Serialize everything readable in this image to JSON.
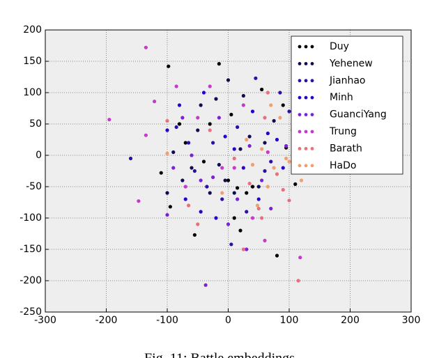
{
  "chart_data": {
    "type": "scatter",
    "xlim": [
      -300,
      300
    ],
    "ylim": [
      -250,
      200
    ],
    "xticks": [
      -300,
      -200,
      -100,
      0,
      100,
      200,
      300
    ],
    "yticks": [
      -250,
      -200,
      -150,
      -100,
      -50,
      0,
      50,
      100,
      150,
      200
    ],
    "grid": true,
    "legend": "upper right",
    "series": [
      {
        "name": "Duy",
        "color": "#000000",
        "x": [
          -98,
          -15,
          -55,
          -95,
          15,
          20,
          80,
          110,
          95,
          -110,
          -70,
          -30,
          0,
          10,
          30,
          55,
          -40,
          5,
          -80,
          40,
          90
        ],
        "values": [
          142,
          146,
          -127,
          -82,
          -52,
          -120,
          -160,
          -46,
          12,
          -28,
          20,
          50,
          -40,
          -100,
          -60,
          105,
          -10,
          65,
          50,
          -50,
          80
        ]
      },
      {
        "name": "Yehenew",
        "color": "#100c50",
        "x": [
          -90,
          -60,
          -45,
          -20,
          25,
          50,
          10,
          -5,
          35,
          -30,
          60,
          -75,
          0,
          20,
          -50,
          75,
          -100,
          -15
        ],
        "values": [
          5,
          -20,
          80,
          90,
          95,
          -50,
          -60,
          -40,
          30,
          -60,
          20,
          -40,
          120,
          10,
          40,
          55,
          -60,
          -15
        ]
      },
      {
        "name": "Jianhao",
        "color": "#2a10a8",
        "x": [
          -160,
          -65,
          -35,
          5,
          45,
          85,
          -85,
          15,
          60,
          -25,
          30,
          -10,
          100,
          -55,
          70
        ],
        "values": [
          -5,
          20,
          -50,
          -142,
          123,
          100,
          45,
          45,
          -25,
          20,
          -90,
          -70,
          70,
          -25,
          -10
        ]
      },
      {
        "name": "Minh",
        "color": "#2a00d0",
        "x": [
          -80,
          -40,
          40,
          90,
          -20,
          10,
          50,
          -70,
          -100,
          25,
          65,
          -5,
          80,
          -45
        ],
        "values": [
          80,
          100,
          70,
          -20,
          -100,
          10,
          -70,
          -70,
          40,
          -20,
          35,
          30,
          25,
          -90
        ]
      },
      {
        "name": "GuanciYang",
        "color": "#7a22d8",
        "x": [
          -37,
          -45,
          -100,
          30,
          -60,
          -15,
          55,
          15,
          -90,
          35,
          0,
          70,
          -25,
          95,
          -75
        ],
        "values": [
          -207,
          -40,
          -95,
          -150,
          0,
          60,
          -40,
          -70,
          -20,
          15,
          -110,
          -85,
          -35,
          15,
          60
        ]
      },
      {
        "name": "Trung",
        "color": "#c53ac8",
        "x": [
          -135,
          -195,
          -147,
          -121,
          118,
          -30,
          60,
          -85,
          40,
          -50,
          10,
          65,
          -10,
          25,
          -135,
          -70,
          110
        ],
        "values": [
          172,
          57,
          -73,
          86,
          -163,
          110,
          -136,
          110,
          -100,
          60,
          -20,
          5,
          -20,
          80,
          32,
          -50,
          105
        ]
      },
      {
        "name": "Barath",
        "color": "#e8707a",
        "x": [
          -100,
          -65,
          25,
          55,
          100,
          115,
          65,
          50,
          80,
          -30,
          10,
          35,
          90,
          -50,
          60
        ],
        "values": [
          55,
          -80,
          -150,
          -100,
          -72,
          -200,
          100,
          -85,
          -30,
          40,
          -5,
          -45,
          -55,
          -110,
          60
        ]
      },
      {
        "name": "HaDo",
        "color": "#f0a070",
        "x": [
          -100,
          48,
          75,
          120,
          95,
          55,
          40,
          105,
          85,
          30,
          65,
          -10,
          100,
          70
        ],
        "values": [
          3,
          -80,
          -20,
          -40,
          -5,
          10,
          -15,
          40,
          60,
          25,
          -50,
          -60,
          -10,
          80
        ]
      }
    ]
  },
  "caption": "Fig. 11: Battle embeddings"
}
